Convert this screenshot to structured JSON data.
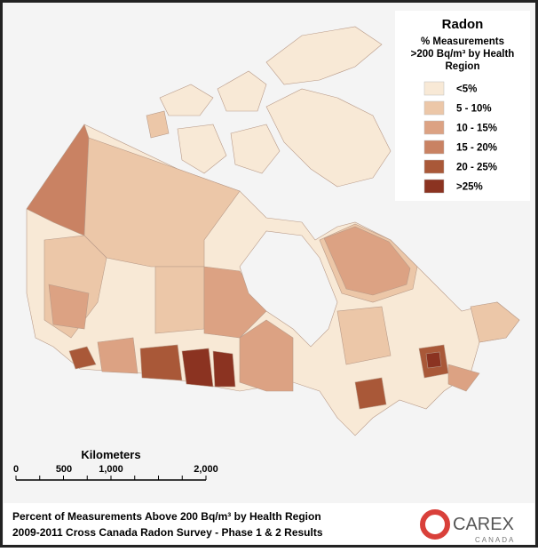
{
  "legend": {
    "title": "Radon",
    "subtitle_lines": [
      "% Measurements",
      ">200 Bq/m³ by Health",
      "Region"
    ],
    "items": [
      {
        "label": "<5%",
        "color": "#f8e9d6"
      },
      {
        "label": "5 - 10%",
        "color": "#ecc7a8"
      },
      {
        "label": "10 - 15%",
        "color": "#dca283"
      },
      {
        "label": "15 - 20%",
        "color": "#c98263"
      },
      {
        "label": "20 - 25%",
        "color": "#a95838"
      },
      {
        "label": ">25%",
        "color": "#8b3321"
      }
    ]
  },
  "scale_bar": {
    "title": "Kilometers",
    "ticks": [
      "0",
      "500",
      "1,000",
      "2,000"
    ]
  },
  "footer": {
    "line1": "Percent of Measurements Above 200 Bq/m³ by Health Region",
    "line2": "2009-2011 Cross Canada Radon Survey - Phase 1 & 2 Results"
  },
  "logo": {
    "name": "CAREX",
    "sub": "CANADA"
  }
}
